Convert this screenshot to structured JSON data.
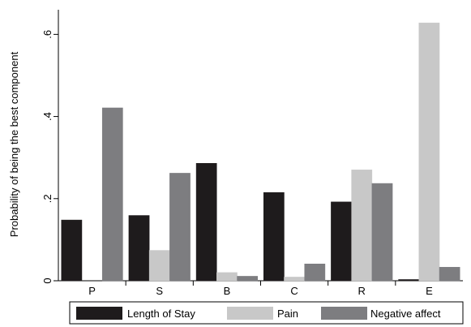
{
  "chart_data": {
    "type": "bar",
    "ylabel": "Probability of being the best component",
    "xlabel": "",
    "ylim": [
      0,
      0.66
    ],
    "yticks": [
      0,
      0.2,
      0.4,
      0.6
    ],
    "ytick_labels": [
      "0",
      ".2",
      ".4",
      ".6"
    ],
    "y_tick_label_rotation": "vertical",
    "grid": false,
    "legend_position": "bottom",
    "categories": [
      "P",
      "S",
      "B",
      "C",
      "R",
      "E"
    ],
    "series": [
      {
        "name": "Length of Stay",
        "color": "#1e1b1c",
        "values": [
          0.148,
          0.159,
          0.286,
          0.215,
          0.192,
          0.003
        ]
      },
      {
        "name": "Pain",
        "color": "#c8c8c8",
        "values": [
          0.0,
          0.074,
          0.02,
          0.009,
          0.27,
          0.628
        ]
      },
      {
        "name": "Negative affect",
        "color": "#7d7d80",
        "values": [
          0.421,
          0.262,
          0.011,
          0.041,
          0.237,
          0.033
        ]
      }
    ]
  }
}
